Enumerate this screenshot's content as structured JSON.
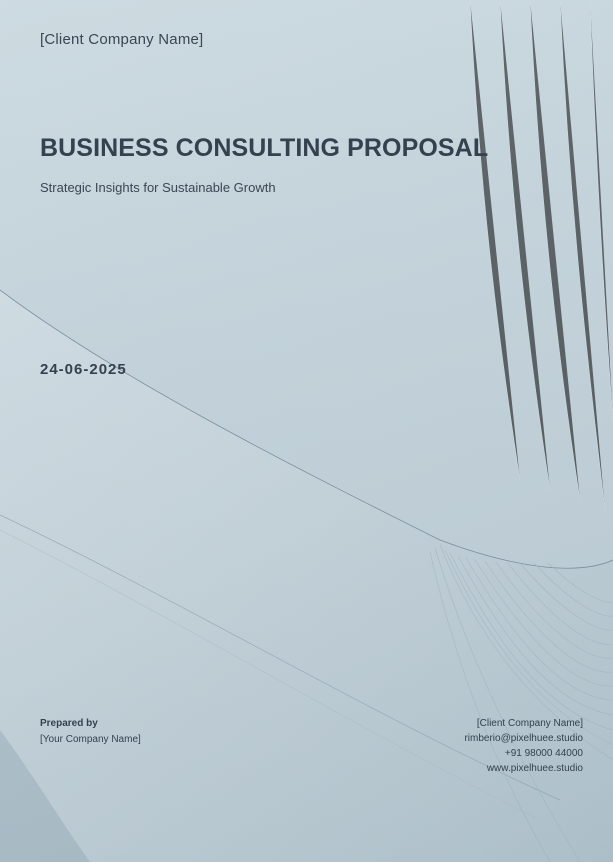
{
  "cover": {
    "client_company": "[Client Company Name]",
    "title": "BUSINESS CONSULTING PROPOSAL",
    "subtitle": "Strategic Insights for Sustainable Growth",
    "date": "24-06-2025"
  },
  "prepared_by": {
    "label": "Prepared by",
    "company": "[Your Company Name]"
  },
  "contact": {
    "company": "[Client Company Name]",
    "email": "rimberio@pixelhuee.studio",
    "phone": "+91 98000 44000",
    "website": "www.pixelhuee.studio"
  },
  "colors": {
    "background": "#c3d2da",
    "text": "#34414f"
  }
}
